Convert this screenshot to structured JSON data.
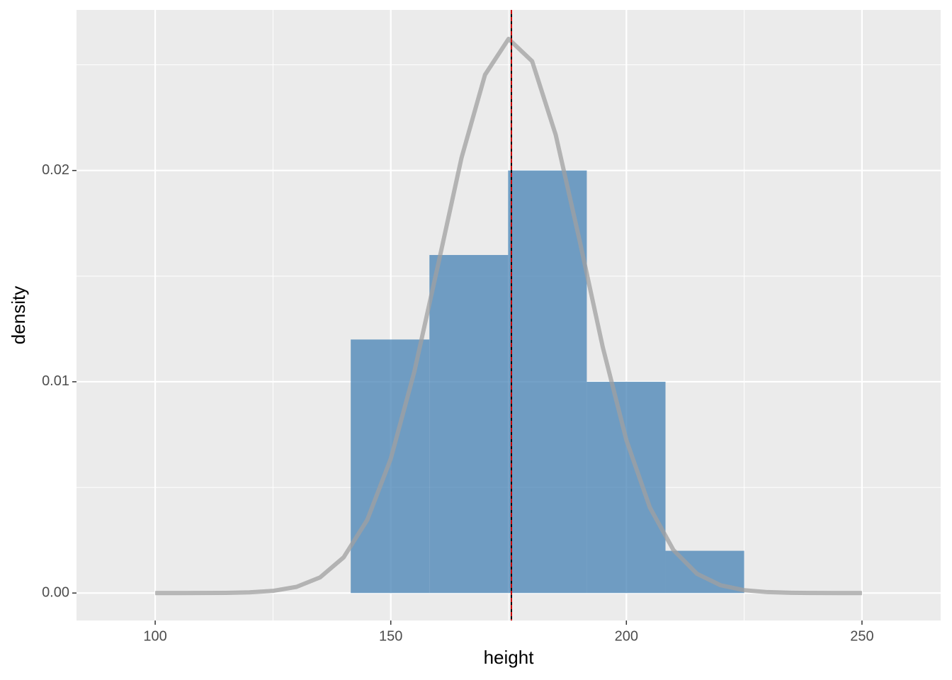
{
  "chart_data": {
    "type": "histogram",
    "x_label": "height",
    "y_label": "density",
    "bins": [
      141.5,
      158.2,
      174.9,
      191.6,
      208.3,
      225.0
    ],
    "values": [
      0.012,
      0.016,
      0.02,
      0.01,
      0.002
    ],
    "color": "#4682b4",
    "density_curve": {
      "color": "#a0a0a0",
      "x": [
        100,
        105,
        110,
        115,
        120,
        125,
        130,
        135,
        140,
        145,
        150,
        155,
        160,
        165,
        170,
        175,
        180,
        185,
        190,
        195,
        200,
        205,
        210,
        215,
        220,
        225,
        230,
        235,
        240,
        245,
        250
      ],
      "values": [
        0,
        0,
        2.4e-06,
        9.3e-06,
        3.3e-05,
        0.000103,
        0.000292,
        0.000741,
        0.00169,
        0.00346,
        0.00636,
        0.01048,
        0.0155,
        0.02059,
        0.02453,
        0.02623,
        0.02517,
        0.02169,
        0.01676,
        0.01163,
        0.00724,
        0.00404,
        0.00203,
        0.00091,
        0.000368,
        0.000134,
        4.34e-05,
        1.26e-05,
        3.3e-06,
        8e-07,
        0
      ]
    },
    "vlines": [
      {
        "value": 175.6,
        "color": "#000000",
        "dashed": false
      },
      {
        "value": 175.6,
        "color": "#cc0000",
        "dashed": true
      }
    ],
    "xlim": [
      83.3,
      266.7
    ],
    "ylim": [
      -0.0013,
      0.0276
    ],
    "xticks": [
      100,
      150,
      200,
      250
    ],
    "yticks": [
      {
        "value": 0,
        "label": "0.00"
      },
      0.01,
      0.02
    ],
    "x_minor_grid": [
      125,
      175,
      225
    ],
    "y_minor_grid": [
      0.005,
      0.015,
      0.025
    ],
    "grid": true
  }
}
